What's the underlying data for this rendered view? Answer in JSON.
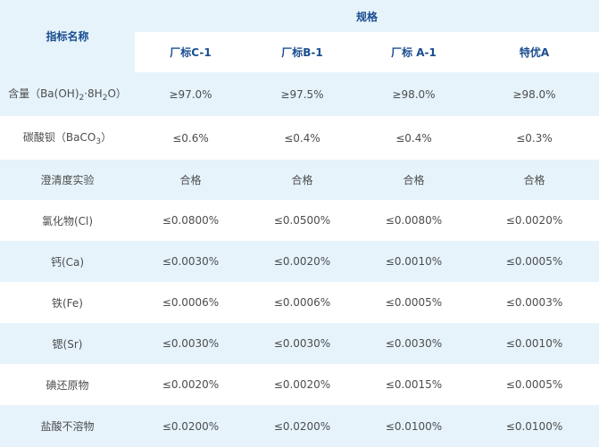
{
  "table": {
    "indicator_header": "指标名称",
    "spec_header": "规格",
    "grades": [
      "厂标C-1",
      "厂标B-1",
      "厂标 A-1",
      "特优A"
    ],
    "rows": [
      {
        "label_parts": [
          {
            "t": "含量（Ba(OH)"
          },
          {
            "t": "2",
            "sub": true
          },
          {
            "t": "·8H"
          },
          {
            "t": "2",
            "sub": true
          },
          {
            "t": "O）"
          }
        ],
        "values": [
          "≥97.0%",
          "≥97.5%",
          "≥98.0%",
          "≥98.0%"
        ]
      },
      {
        "label_parts": [
          {
            "t": "碳酸钡（BaCO"
          },
          {
            "t": "3",
            "sub": true
          },
          {
            "t": "）"
          }
        ],
        "values": [
          "≤0.6%",
          "≤0.4%",
          "≤0.4%",
          "≤0.3%"
        ]
      },
      {
        "label_parts": [
          {
            "t": "澄清度实验"
          }
        ],
        "values": [
          "合格",
          "合格",
          "合格",
          "合格"
        ]
      },
      {
        "label_parts": [
          {
            "t": "氯化物(Cl)"
          }
        ],
        "values": [
          "≤0.0800%",
          "≤0.0500%",
          "≤0.0080%",
          "≤0.0020%"
        ]
      },
      {
        "label_parts": [
          {
            "t": "钙(Ca)"
          }
        ],
        "values": [
          "≤0.0030%",
          "≤0.0020%",
          "≤0.0010%",
          "≤0.0005%"
        ]
      },
      {
        "label_parts": [
          {
            "t": "铁(Fe)"
          }
        ],
        "values": [
          "≤0.0006%",
          "≤0.0006%",
          "≤0.0005%",
          "≤0.0003%"
        ]
      },
      {
        "label_parts": [
          {
            "t": "锶(Sr)"
          }
        ],
        "values": [
          "≤0.0030%",
          "≤0.0030%",
          "≤0.0030%",
          "≤0.0010%"
        ]
      },
      {
        "label_parts": [
          {
            "t": "碘还原物"
          }
        ],
        "values": [
          "≤0.0020%",
          "≤0.0020%",
          "≤0.0015%",
          "≤0.0005%"
        ]
      },
      {
        "label_parts": [
          {
            "t": "盐酸不溶物"
          }
        ],
        "values": [
          "≤0.0200%",
          "≤0.0200%",
          "≤0.0100%",
          "≤0.0100%"
        ]
      }
    ]
  },
  "colors": {
    "header_text": "#1a4d8f",
    "band_light": "#e6f3fb",
    "band_white": "#ffffff",
    "body_text": "#4d4d4d"
  }
}
